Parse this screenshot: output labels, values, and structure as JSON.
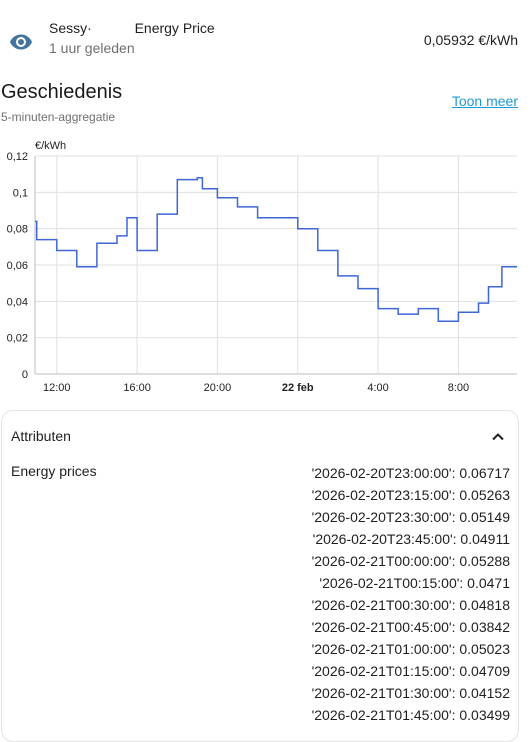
{
  "entity": {
    "name": "Sessy·           Energy Price",
    "last_changed": "1 uur geleden",
    "state": "0,05932 €/kWh",
    "icon": "eye-icon"
  },
  "history": {
    "title": "Geschiedenis",
    "subtitle": "5-minuten-aggregatie",
    "show_more_label": "Toon meer"
  },
  "chart_data": {
    "type": "line",
    "step": true,
    "ylabel": "€/kWh",
    "ylim": [
      0,
      0.12
    ],
    "y_ticks": [
      "0",
      "0,02",
      "0,04",
      "0,06",
      "0,08",
      "0,1",
      "0,12"
    ],
    "x_ticks": [
      "12:00",
      "16:00",
      "20:00",
      "22 feb",
      "4:00",
      "8:00"
    ],
    "xlim": [
      "2026-02-21T10:55",
      "2026-02-22T10:55"
    ],
    "grid": true,
    "color": "#3e66d6",
    "points": [
      [
        "2026-02-21T10:55",
        0.084
      ],
      [
        "2026-02-21T11:00",
        0.074
      ],
      [
        "2026-02-21T12:00",
        0.068
      ],
      [
        "2026-02-21T13:00",
        0.059
      ],
      [
        "2026-02-21T14:00",
        0.072
      ],
      [
        "2026-02-21T15:00",
        0.076
      ],
      [
        "2026-02-21T15:30",
        0.086
      ],
      [
        "2026-02-21T16:00",
        0.068
      ],
      [
        "2026-02-21T17:00",
        0.088
      ],
      [
        "2026-02-21T18:00",
        0.107
      ],
      [
        "2026-02-21T19:00",
        0.108
      ],
      [
        "2026-02-21T19:15",
        0.102
      ],
      [
        "2026-02-21T20:00",
        0.097
      ],
      [
        "2026-02-21T21:00",
        0.092
      ],
      [
        "2026-02-21T22:00",
        0.086
      ],
      [
        "2026-02-22T00:00",
        0.08
      ],
      [
        "2026-02-22T01:00",
        0.068
      ],
      [
        "2026-02-22T02:00",
        0.054
      ],
      [
        "2026-02-22T03:00",
        0.047
      ],
      [
        "2026-02-22T04:00",
        0.036
      ],
      [
        "2026-02-22T05:00",
        0.033
      ],
      [
        "2026-02-22T06:00",
        0.036
      ],
      [
        "2026-02-22T07:00",
        0.029
      ],
      [
        "2026-02-22T08:00",
        0.034
      ],
      [
        "2026-02-22T09:00",
        0.039
      ],
      [
        "2026-02-22T09:30",
        0.048
      ],
      [
        "2026-02-22T10:10",
        0.059
      ],
      [
        "2026-02-22T10:55",
        0.059
      ]
    ]
  },
  "attributes": {
    "title": "Attributen",
    "key": "Energy prices",
    "values": [
      "'2026-02-20T23:00:00': 0.06717",
      "'2026-02-20T23:15:00': 0.05263",
      "'2026-02-20T23:30:00': 0.05149",
      "'2026-02-20T23:45:00': 0.04911",
      "'2026-02-21T00:00:00': 0.05288",
      "'2026-02-21T00:15:00': 0.0471",
      "'2026-02-21T00:30:00': 0.04818",
      "'2026-02-21T00:45:00': 0.03842",
      "'2026-02-21T01:00:00': 0.05023",
      "'2026-02-21T01:15:00': 0.04709",
      "'2026-02-21T01:30:00': 0.04152",
      "'2026-02-21T01:45:00': 0.03499"
    ]
  }
}
